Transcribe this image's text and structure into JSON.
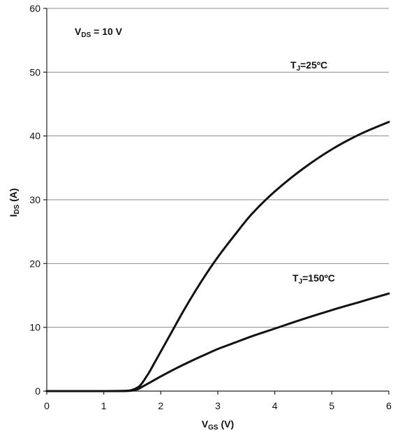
{
  "chart_data": {
    "type": "line",
    "title": "",
    "xlabel": {
      "main": "V",
      "sub": "GS",
      "suffix": " (V)"
    },
    "ylabel": {
      "main": "I",
      "sub": "DS",
      "suffix": " (A)"
    },
    "xlim": [
      0,
      6
    ],
    "ylim": [
      0,
      60
    ],
    "xticks": [
      "0",
      "1",
      "2",
      "3",
      "4",
      "5",
      "6"
    ],
    "yticks": [
      "0",
      "10",
      "20",
      "30",
      "40",
      "50",
      "60"
    ],
    "grid": "horizontal",
    "annotations": {
      "vds": {
        "main": "V",
        "sub": "DS",
        "suffix": " = 10 V"
      },
      "t25": {
        "main": "T",
        "sub": "J",
        "suffix": "=25ºC"
      },
      "t150": {
        "main": "T",
        "sub": "J",
        "suffix": "=150ºC"
      }
    },
    "series": [
      {
        "name": "T=25ºC",
        "x": [
          0,
          1.0,
          1.4,
          1.5,
          1.6,
          1.65,
          1.7,
          1.75,
          1.8,
          1.9,
          2.0,
          2.2,
          2.4,
          2.6,
          2.8,
          3.0,
          3.3,
          3.6,
          4.0,
          4.5,
          5.0,
          5.5,
          6.0
        ],
        "y": [
          0,
          0,
          0.05,
          0.2,
          0.6,
          1.0,
          1.6,
          2.3,
          3.0,
          4.6,
          6.2,
          9.4,
          12.6,
          15.6,
          18.4,
          21.0,
          24.5,
          27.8,
          31.3,
          34.9,
          37.9,
          40.3,
          42.2
        ]
      },
      {
        "name": "T=150ºC",
        "x": [
          0,
          1.0,
          1.4,
          1.5,
          1.6,
          1.65,
          1.7,
          1.75,
          1.8,
          1.9,
          2.0,
          2.2,
          2.4,
          2.6,
          2.8,
          3.0,
          3.3,
          3.6,
          4.0,
          4.5,
          5.0,
          5.5,
          6.0
        ],
        "y": [
          0,
          0,
          0.02,
          0.1,
          0.3,
          0.55,
          0.8,
          1.05,
          1.3,
          1.8,
          2.3,
          3.25,
          4.15,
          5.0,
          5.8,
          6.6,
          7.6,
          8.6,
          9.8,
          11.3,
          12.7,
          14.0,
          15.3
        ]
      }
    ]
  }
}
